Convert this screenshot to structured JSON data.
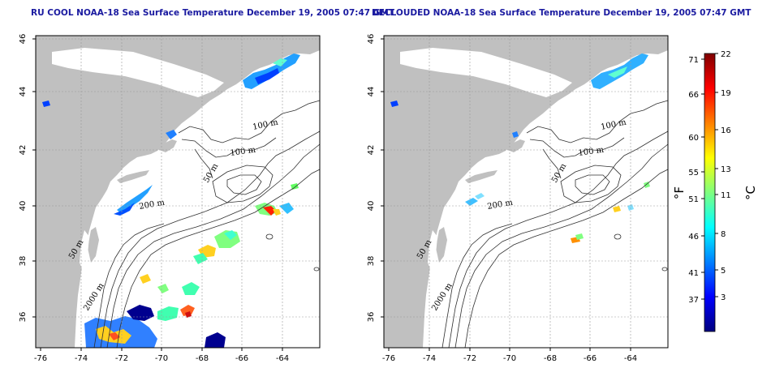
{
  "maps": [
    {
      "id": "left",
      "title": "RU COOL NOAA-18 Sea Surface Temperature December 19, 2005 07:47 GMT",
      "x_ticks": [
        "-76",
        "-74",
        "-72",
        "-70",
        "-68",
        "-66",
        "-64"
      ],
      "y_ticks": [
        "36",
        "38",
        "40",
        "42",
        "44",
        "46"
      ],
      "contour_labels": [
        "100 m",
        "100 m",
        "50 m",
        "200 m",
        "50 m",
        "2000 m"
      ]
    },
    {
      "id": "right",
      "title": "DECLOUDED NOAA-18 Sea Surface Temperature December 19, 2005 07:47 GMT",
      "x_ticks": [
        "-76",
        "-74",
        "-72",
        "-70",
        "-68",
        "-66",
        "-64"
      ],
      "y_ticks": [
        "36",
        "38",
        "40",
        "42",
        "44",
        "46"
      ],
      "contour_labels": [
        "100 m",
        "100 m",
        "50 m",
        "200 m",
        "50 m",
        "2000 m"
      ]
    }
  ],
  "colorbar": {
    "fahrenheit_unit": "°F",
    "celsius_unit": "°C",
    "fahrenheit_ticks": [
      "71",
      "66",
      "60",
      "55",
      "51",
      "46",
      "41",
      "37"
    ],
    "celsius_ticks": [
      "22",
      "19",
      "16",
      "13",
      "11",
      "8",
      "5",
      "3"
    ]
  },
  "colors": {
    "land": "#c0c0c0",
    "ocean": "#ffffff",
    "title": "#1a1aa0",
    "cold": "#00007f",
    "warm": "#7f0000"
  }
}
